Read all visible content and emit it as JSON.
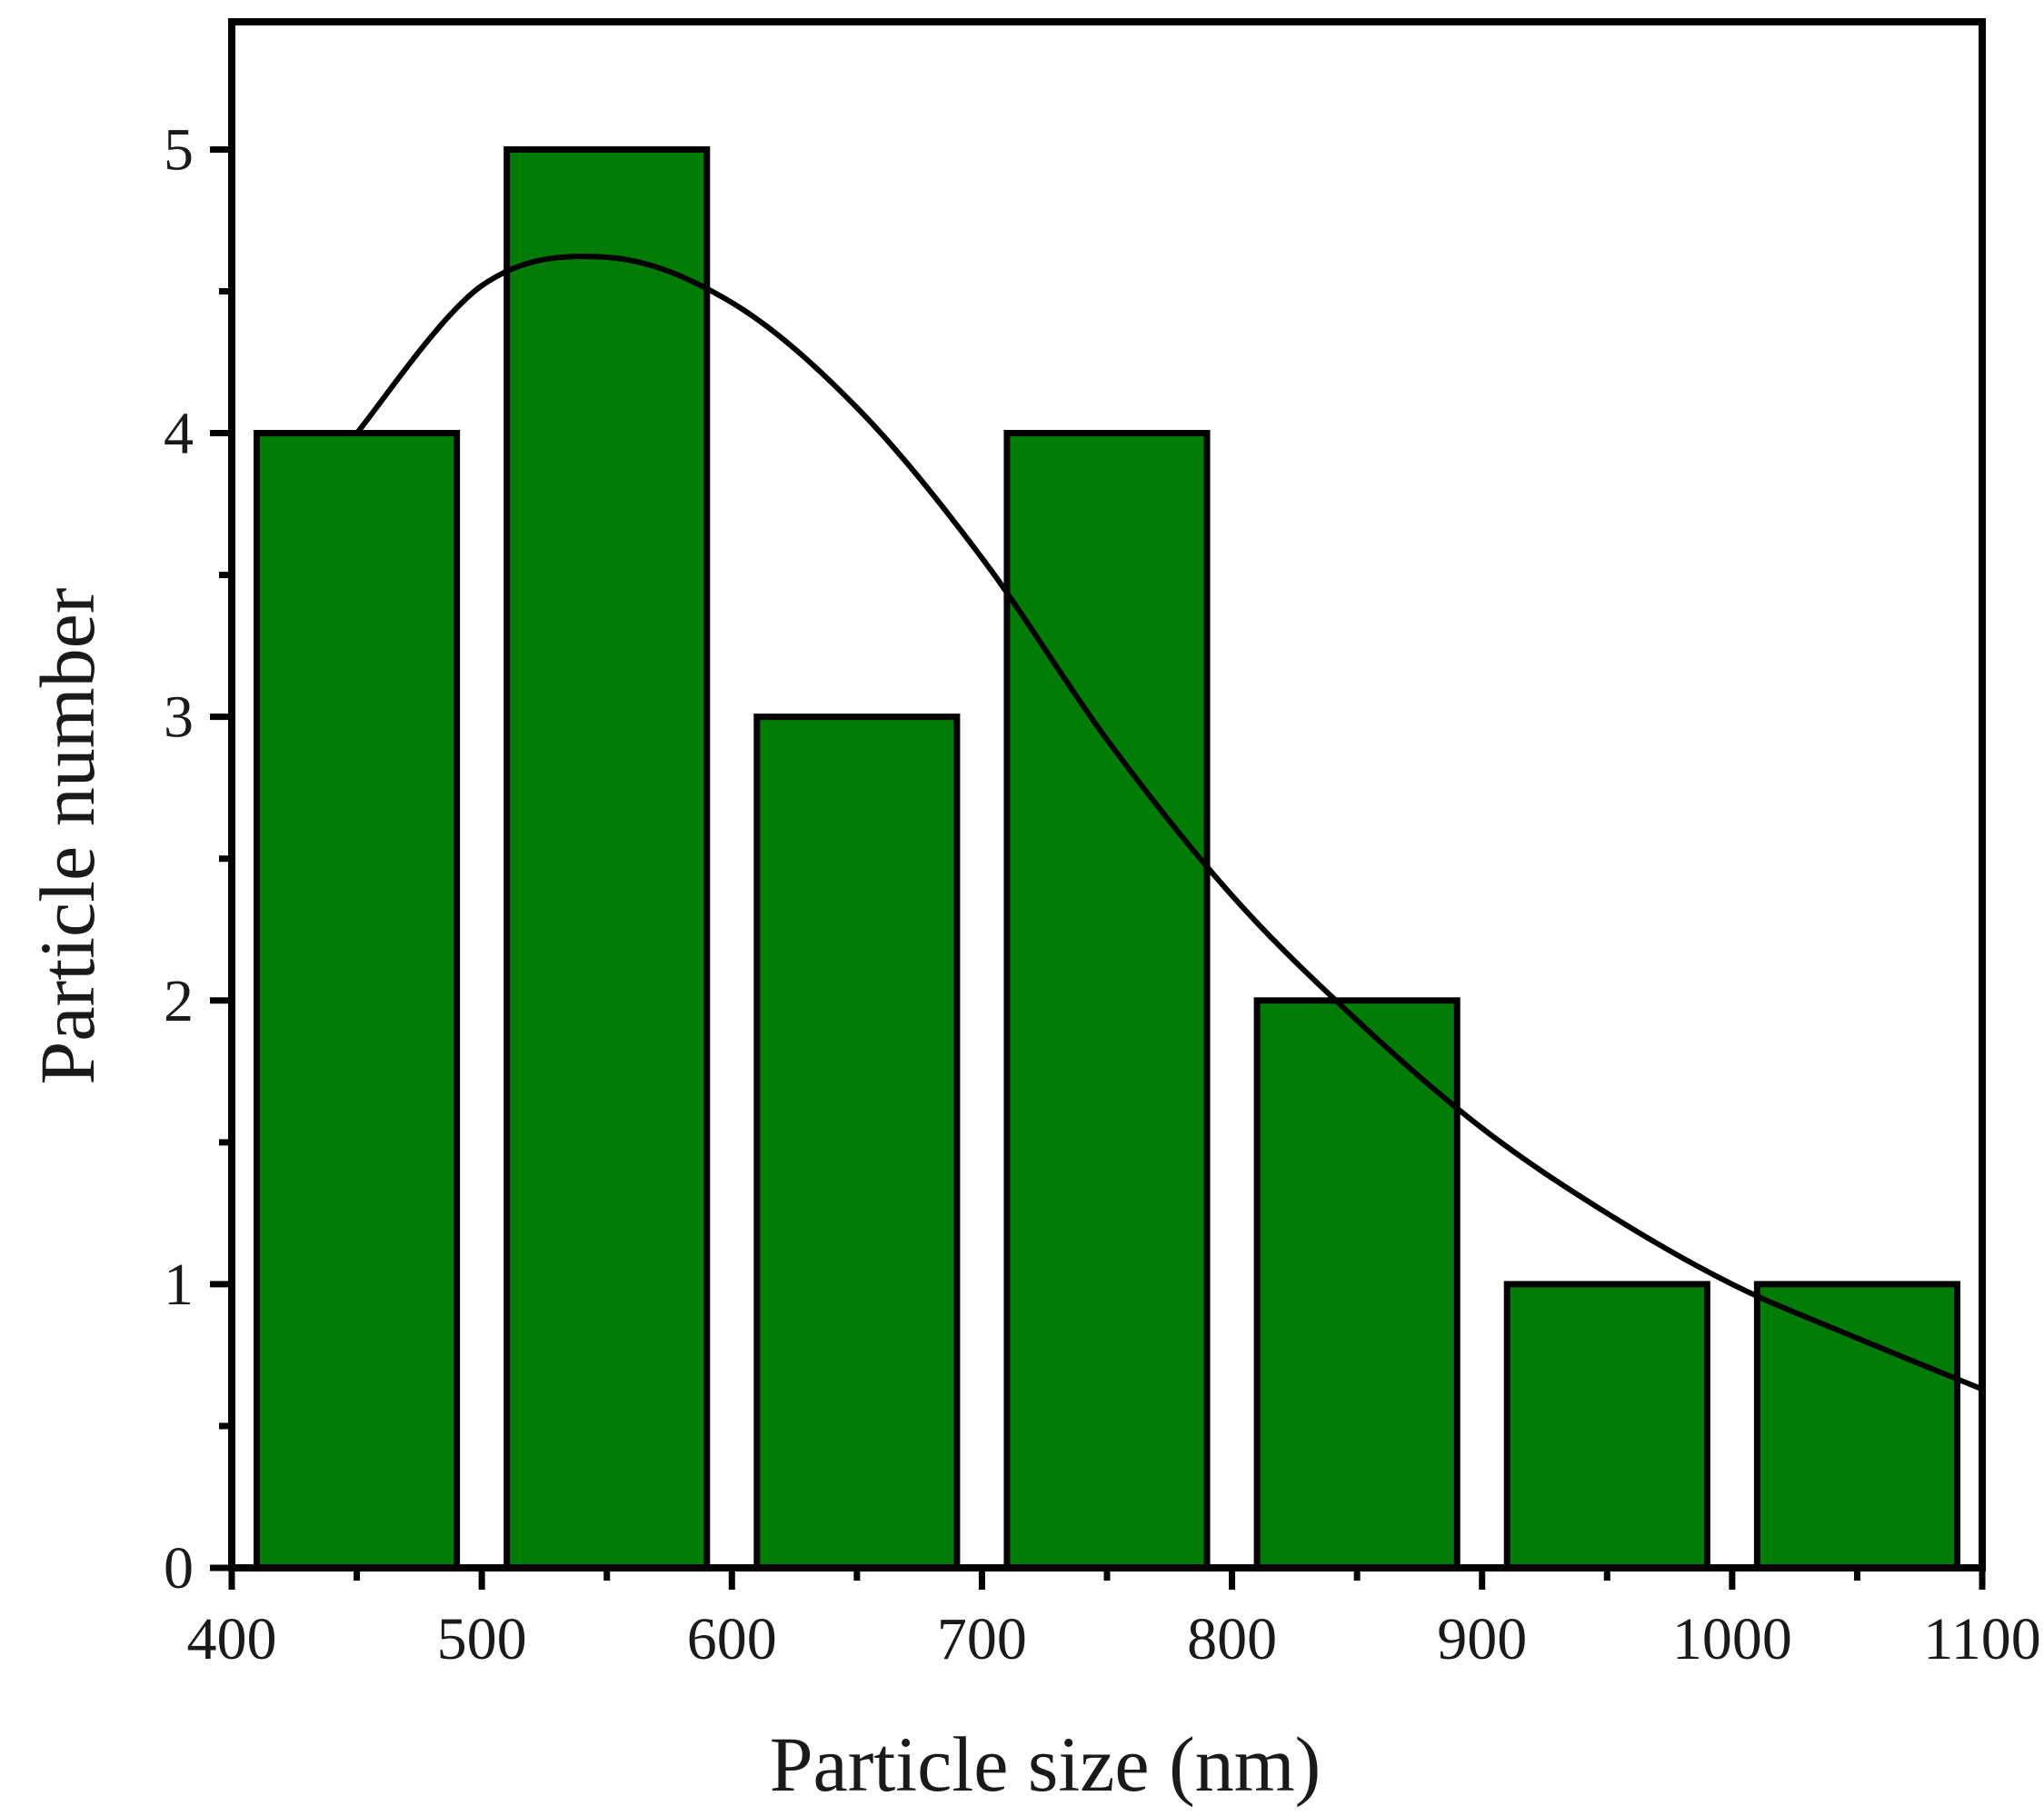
{
  "chart_data": {
    "type": "bar",
    "title": "",
    "xlabel": "Particle size (nm)",
    "ylabel": "Particle number",
    "xlim": [
      400,
      1100
    ],
    "ylim": [
      0,
      5.45
    ],
    "x_ticks": [
      "400",
      "500",
      "600",
      "700",
      "800",
      "900",
      "1000",
      "1100"
    ],
    "y_ticks": [
      "0",
      "1",
      "2",
      "3",
      "4",
      "5"
    ],
    "bar_color": "#027c06",
    "bar_edge_color": "#000000",
    "bars": [
      {
        "x_start": 410,
        "x_end": 490,
        "value": 4
      },
      {
        "x_start": 510,
        "x_end": 590,
        "value": 5
      },
      {
        "x_start": 610,
        "x_end": 690,
        "value": 3
      },
      {
        "x_start": 710,
        "x_end": 790,
        "value": 4
      },
      {
        "x_start": 810,
        "x_end": 890,
        "value": 2
      },
      {
        "x_start": 910,
        "x_end": 990,
        "value": 1
      },
      {
        "x_start": 1010,
        "x_end": 1090,
        "value": 1
      }
    ],
    "fit_curve": {
      "type": "line",
      "color": "#000000",
      "x": [
        450,
        500,
        550,
        600,
        650,
        700,
        750,
        800,
        850,
        900,
        950,
        1000,
        1050,
        1100
      ],
      "y": [
        4.0,
        4.52,
        4.62,
        4.46,
        4.09,
        3.56,
        2.92,
        2.37,
        1.93,
        1.55,
        1.25,
        1.0,
        0.81,
        0.63
      ]
    },
    "grid": false,
    "legend": "none"
  }
}
